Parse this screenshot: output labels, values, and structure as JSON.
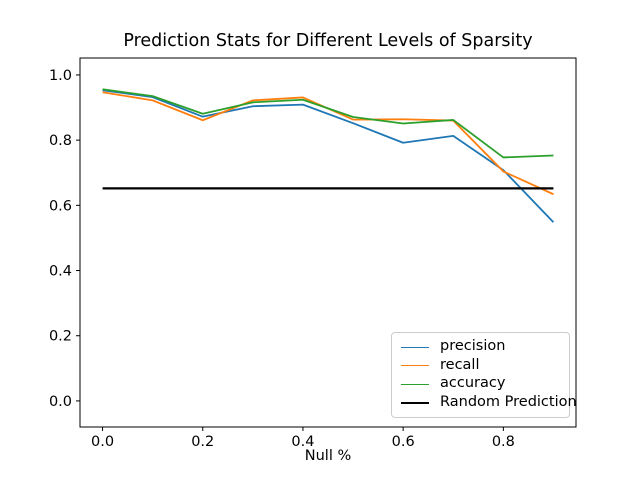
{
  "chart_data": {
    "type": "line",
    "title": "Prediction Stats for Different Levels of Sparsity",
    "xlabel": "Null %",
    "ylabel": "",
    "x": [
      0.0,
      0.1,
      0.2,
      0.3,
      0.4,
      0.5,
      0.6,
      0.7,
      0.8,
      0.9
    ],
    "series": [
      {
        "name": "precision",
        "color": "#1f77b4",
        "width": 1.8,
        "values": [
          0.953,
          0.932,
          0.872,
          0.904,
          0.909,
          0.852,
          0.792,
          0.813,
          0.708,
          0.548
        ]
      },
      {
        "name": "recall",
        "color": "#ff7f0e",
        "width": 1.8,
        "values": [
          0.947,
          0.922,
          0.861,
          0.922,
          0.931,
          0.863,
          0.864,
          0.86,
          0.704,
          0.634
        ]
      },
      {
        "name": "accuracy",
        "color": "#2ca02c",
        "width": 1.8,
        "values": [
          0.956,
          0.935,
          0.881,
          0.916,
          0.924,
          0.871,
          0.851,
          0.862,
          0.747,
          0.753
        ]
      },
      {
        "name": "Random Prediction",
        "color": "#000000",
        "width": 2.2,
        "values": [
          0.652,
          0.652,
          0.652,
          0.652,
          0.652,
          0.652,
          0.652,
          0.652,
          0.652,
          0.652
        ]
      }
    ],
    "xlim": [
      -0.045,
      0.945
    ],
    "ylim": [
      -0.08,
      1.052
    ],
    "xticks": [
      0.0,
      0.2,
      0.4,
      0.6,
      0.8
    ],
    "yticks": [
      0.0,
      0.2,
      0.4,
      0.6,
      0.8,
      1.0
    ],
    "grid": false,
    "legend_position": "lower right",
    "axis_color": "#000000",
    "background_color": "#ffffff"
  }
}
